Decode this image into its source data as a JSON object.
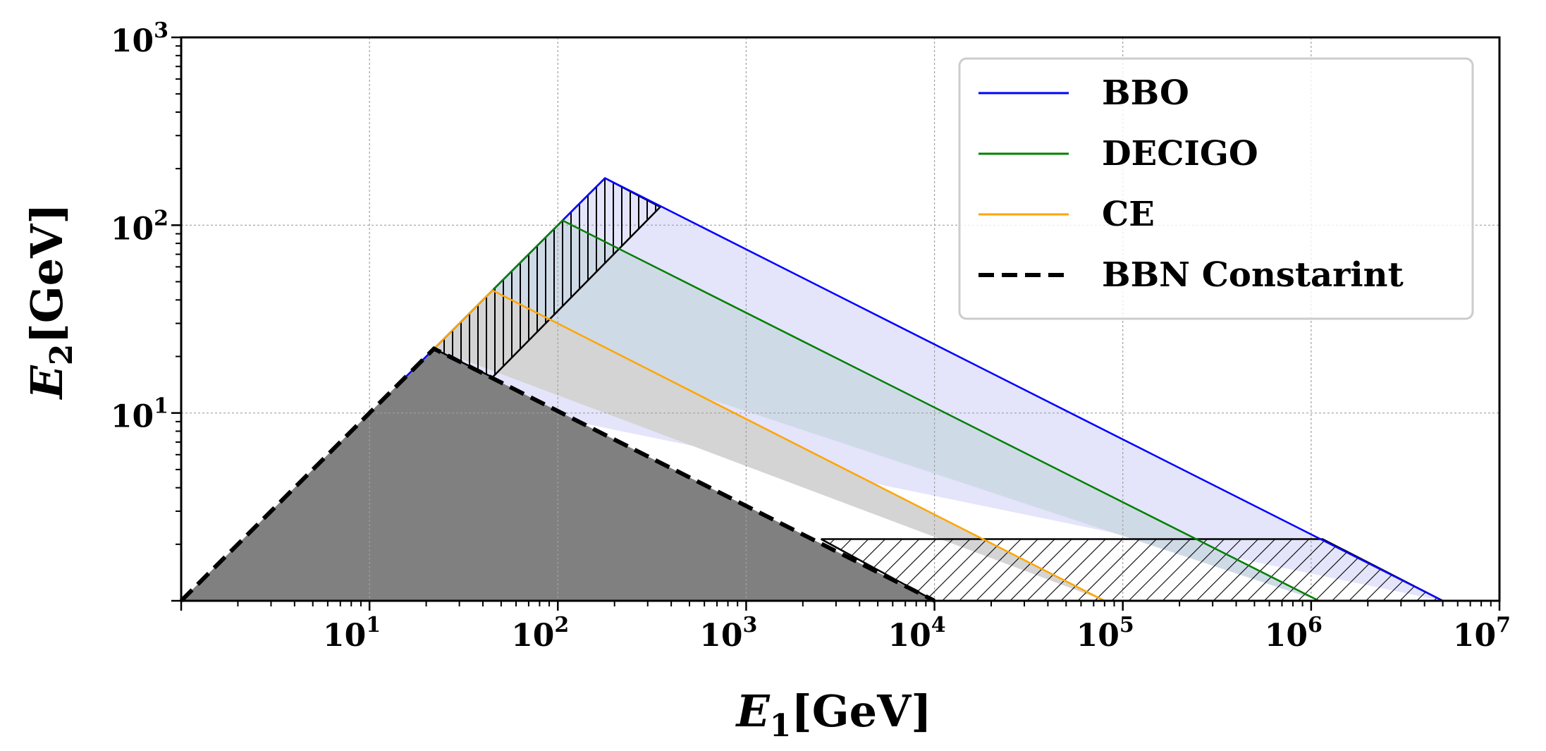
{
  "chart_data": {
    "type": "line",
    "xscale": "log",
    "yscale": "log",
    "xlim": [
      1,
      10000000
    ],
    "ylim": [
      1,
      1000
    ],
    "grid": true,
    "legend_position": "top-right",
    "xlabel": {
      "main": "E",
      "sub": "1",
      "unit": "[GeV]"
    },
    "ylabel": {
      "main": "E",
      "sub": "2",
      "unit": "[GeV]"
    },
    "x_ticks": [
      {
        "base": "10",
        "exp": "1",
        "value": 10
      },
      {
        "base": "10",
        "exp": "2",
        "value": 100
      },
      {
        "base": "10",
        "exp": "3",
        "value": 1000
      },
      {
        "base": "10",
        "exp": "4",
        "value": 10000
      },
      {
        "base": "10",
        "exp": "5",
        "value": 100000
      },
      {
        "base": "10",
        "exp": "6",
        "value": 1000000
      },
      {
        "base": "10",
        "exp": "7",
        "value": 10000000
      }
    ],
    "y_ticks": [
      {
        "base": "10",
        "exp": "1",
        "value": 10
      },
      {
        "base": "10",
        "exp": "2",
        "value": 100
      },
      {
        "base": "10",
        "exp": "3",
        "value": 1000
      }
    ],
    "series": [
      {
        "name": "BBO",
        "color": "#0000ff",
        "fill": "#e4e4fb",
        "x": [
          14.1,
          178,
          5000000
        ],
        "y": [
          14.1,
          178,
          1
        ]
      },
      {
        "name": "DECIGO",
        "color": "#008000",
        "fill": "#cfdae7",
        "x": [
          32,
          106,
          1100000
        ],
        "y": [
          32,
          106,
          1
        ]
      },
      {
        "name": "CE",
        "color": "#ffa500",
        "fill": "#d3d4d3",
        "x": [
          22,
          45,
          80000
        ],
        "y": [
          22,
          45,
          1
        ]
      },
      {
        "name": "BBN Constarint",
        "color": "#000000",
        "dash": "dashed",
        "fill": "#808080",
        "x": [
          1,
          22,
          10000
        ],
        "y": [
          1,
          22,
          1
        ]
      }
    ],
    "hatched_regions": [
      {
        "pattern": "vertical",
        "x": [
          22,
          178,
          350,
          45
        ],
        "y": [
          22,
          178,
          125,
          15.5
        ]
      },
      {
        "pattern": "diagonal",
        "x": [
          2500,
          1150000,
          5000000,
          10000
        ],
        "y": [
          2.13,
          2.13,
          1,
          1
        ]
      }
    ]
  }
}
